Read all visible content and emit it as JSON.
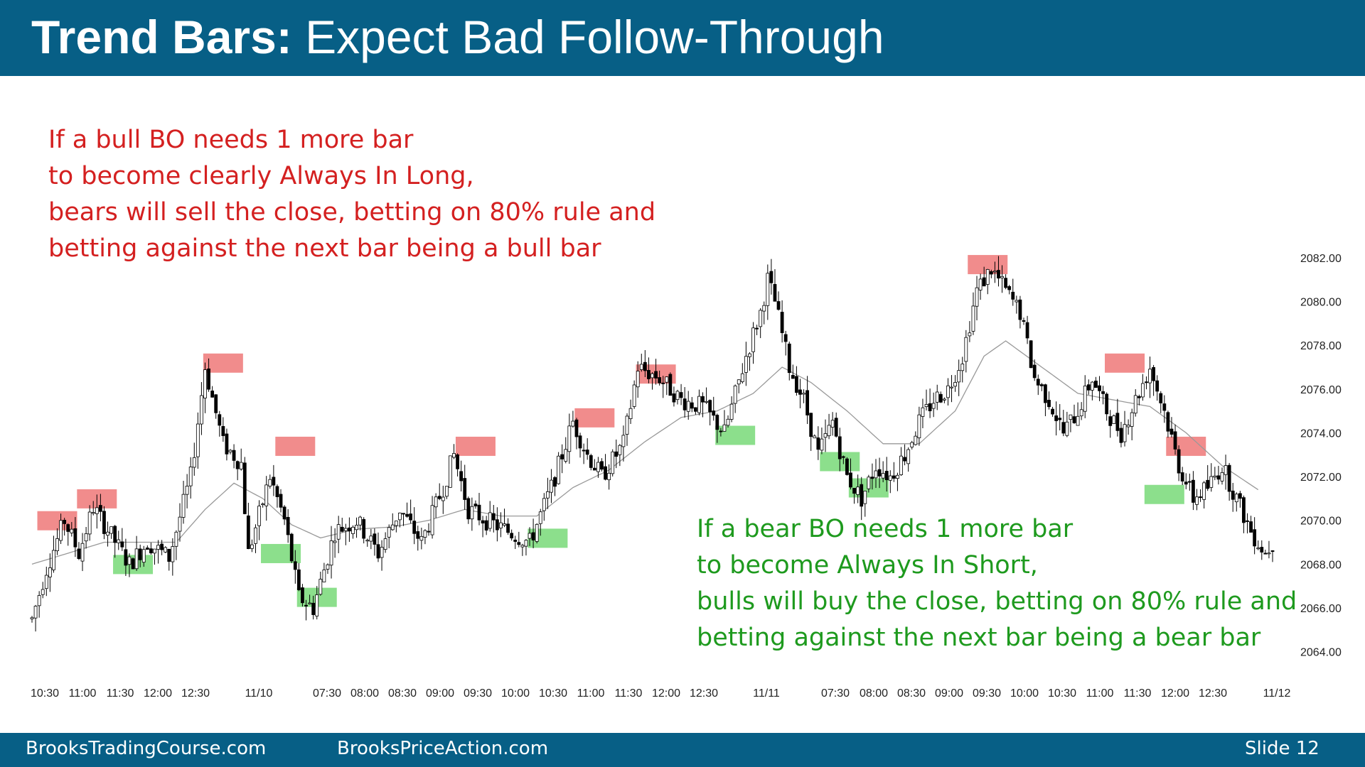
{
  "slide": {
    "title_bold": "Trend Bars:",
    "title_rest": "Expect Bad Follow-Through",
    "bull_note": [
      "If a bull BO needs 1 more bar",
      "to become clearly Always In Long,",
      "bears will sell the close, betting on 80% rule and",
      "betting against the next bar being a bull bar"
    ],
    "bear_note": [
      "If a bear BO needs 1 more bar",
      "to become Always In Short,",
      "bulls will buy the close, betting on 80% rule and",
      "betting against the next bar being a bear bar"
    ],
    "footer_left": "BrooksTradingCourse.com",
    "footer_mid": "BrooksPriceAction.com",
    "footer_right": "Slide  12"
  },
  "colors": {
    "header_bg": "#075f86",
    "bull_note": "#d42020",
    "bear_note": "#1e9a1e",
    "sell_zone": "#f08080",
    "buy_zone": "#7fdc7f",
    "ema_line": "#999999"
  },
  "chart_data": {
    "type": "candlestick",
    "title": "",
    "xlabel": "",
    "ylabel": "",
    "ylim": [
      2063,
      2083
    ],
    "y_ticks": [
      "2064.00",
      "2066.00",
      "2068.00",
      "2070.00",
      "2072.00",
      "2074.00",
      "2076.00",
      "2078.00",
      "2080.00",
      "2082.00"
    ],
    "x_ticks": [
      "10:30",
      "11:00",
      "11:30",
      "12:00",
      "12:30",
      "11/10",
      "07:30",
      "08:00",
      "08:30",
      "09:00",
      "09:30",
      "10:00",
      "10:30",
      "11:00",
      "11:30",
      "12:00",
      "12:30",
      "11/11",
      "07:30",
      "08:00",
      "08:30",
      "09:00",
      "09:30",
      "10:00",
      "10:30",
      "11:00",
      "11:30",
      "12:00",
      "12:30",
      "11/12"
    ],
    "price_path": [
      [
        0,
        2065.5
      ],
      [
        4,
        2067.8
      ],
      [
        9,
        2070.0
      ],
      [
        13,
        2068.5
      ],
      [
        17,
        2070.6
      ],
      [
        22,
        2069.3
      ],
      [
        27,
        2068.0
      ],
      [
        32,
        2069.0
      ],
      [
        38,
        2068.3
      ],
      [
        44,
        2072.0
      ],
      [
        48,
        2077.0
      ],
      [
        53,
        2073.5
      ],
      [
        58,
        2072.6
      ],
      [
        60,
        2068.5
      ],
      [
        66,
        2072.0
      ],
      [
        70,
        2070.0
      ],
      [
        74,
        2066.5
      ],
      [
        78,
        2066.0
      ],
      [
        84,
        2069.5
      ],
      [
        90,
        2070.0
      ],
      [
        96,
        2068.5
      ],
      [
        102,
        2070.5
      ],
      [
        108,
        2069.0
      ],
      [
        114,
        2071.5
      ],
      [
        117,
        2073.0
      ],
      [
        121,
        2070.5
      ],
      [
        126,
        2070.0
      ],
      [
        132,
        2069.5
      ],
      [
        138,
        2069.0
      ],
      [
        144,
        2071.5
      ],
      [
        150,
        2074.5
      ],
      [
        154,
        2073.0
      ],
      [
        158,
        2072.0
      ],
      [
        164,
        2073.5
      ],
      [
        168,
        2077.0
      ],
      [
        174,
        2076.5
      ],
      [
        180,
        2075.5
      ],
      [
        186,
        2075.2
      ],
      [
        192,
        2074.0
      ],
      [
        198,
        2077.5
      ],
      [
        202,
        2079.5
      ],
      [
        204,
        2081.0
      ],
      [
        206,
        2080.0
      ],
      [
        210,
        2077.0
      ],
      [
        214,
        2075.5
      ],
      [
        218,
        2073.0
      ],
      [
        222,
        2074.5
      ],
      [
        226,
        2072.0
      ],
      [
        230,
        2071.0
      ],
      [
        234,
        2072.5
      ],
      [
        238,
        2072.0
      ],
      [
        242,
        2073.0
      ],
      [
        246,
        2074.5
      ],
      [
        250,
        2075.5
      ],
      [
        254,
        2076.0
      ],
      [
        258,
        2077.5
      ],
      [
        262,
        2080.5
      ],
      [
        266,
        2081.5
      ],
      [
        270,
        2080.5
      ],
      [
        274,
        2079.5
      ],
      [
        278,
        2076.5
      ],
      [
        282,
        2075.5
      ],
      [
        286,
        2074.0
      ],
      [
        290,
        2075.0
      ],
      [
        294,
        2076.5
      ],
      [
        298,
        2075.0
      ],
      [
        302,
        2074.0
      ],
      [
        306,
        2075.5
      ],
      [
        310,
        2077.0
      ],
      [
        314,
        2075.0
      ],
      [
        318,
        2072.5
      ],
      [
        322,
        2071.0
      ],
      [
        326,
        2071.5
      ],
      [
        330,
        2072.5
      ],
      [
        334,
        2071.0
      ],
      [
        338,
        2069.5
      ],
      [
        342,
        2068.5
      ],
      [
        344,
        2069.0
      ]
    ],
    "ema_path": [
      [
        0,
        2068.0
      ],
      [
        20,
        2069.0
      ],
      [
        40,
        2069.0
      ],
      [
        48,
        2070.5
      ],
      [
        56,
        2071.7
      ],
      [
        64,
        2071.0
      ],
      [
        72,
        2069.8
      ],
      [
        80,
        2069.2
      ],
      [
        90,
        2069.6
      ],
      [
        100,
        2069.7
      ],
      [
        110,
        2070.0
      ],
      [
        120,
        2070.5
      ],
      [
        130,
        2070.2
      ],
      [
        140,
        2070.2
      ],
      [
        150,
        2071.5
      ],
      [
        160,
        2072.3
      ],
      [
        170,
        2073.6
      ],
      [
        180,
        2074.7
      ],
      [
        190,
        2075.0
      ],
      [
        200,
        2075.8
      ],
      [
        208,
        2077.0
      ],
      [
        216,
        2076.3
      ],
      [
        226,
        2075.0
      ],
      [
        236,
        2073.5
      ],
      [
        246,
        2073.5
      ],
      [
        256,
        2075.0
      ],
      [
        264,
        2077.5
      ],
      [
        270,
        2078.2
      ],
      [
        280,
        2077.0
      ],
      [
        290,
        2075.8
      ],
      [
        300,
        2075.5
      ],
      [
        310,
        2075.2
      ],
      [
        320,
        2074.0
      ],
      [
        330,
        2072.5
      ],
      [
        340,
        2071.4
      ]
    ],
    "sell_zones": [
      [
        7,
        2070.0
      ],
      [
        18,
        2071.0
      ],
      [
        53,
        2077.2
      ],
      [
        73,
        2073.4
      ],
      [
        123,
        2073.4
      ],
      [
        156,
        2074.7
      ],
      [
        173,
        2076.7
      ],
      [
        265,
        2081.7
      ],
      [
        303,
        2077.2
      ],
      [
        320,
        2073.4
      ]
    ],
    "buy_zones": [
      [
        28,
        2068.0
      ],
      [
        69,
        2068.5
      ],
      [
        79,
        2066.5
      ],
      [
        143,
        2069.2
      ],
      [
        195,
        2073.9
      ],
      [
        224,
        2072.7
      ],
      [
        232,
        2071.5
      ],
      [
        314,
        2071.2
      ]
    ],
    "n_bars": 345
  }
}
